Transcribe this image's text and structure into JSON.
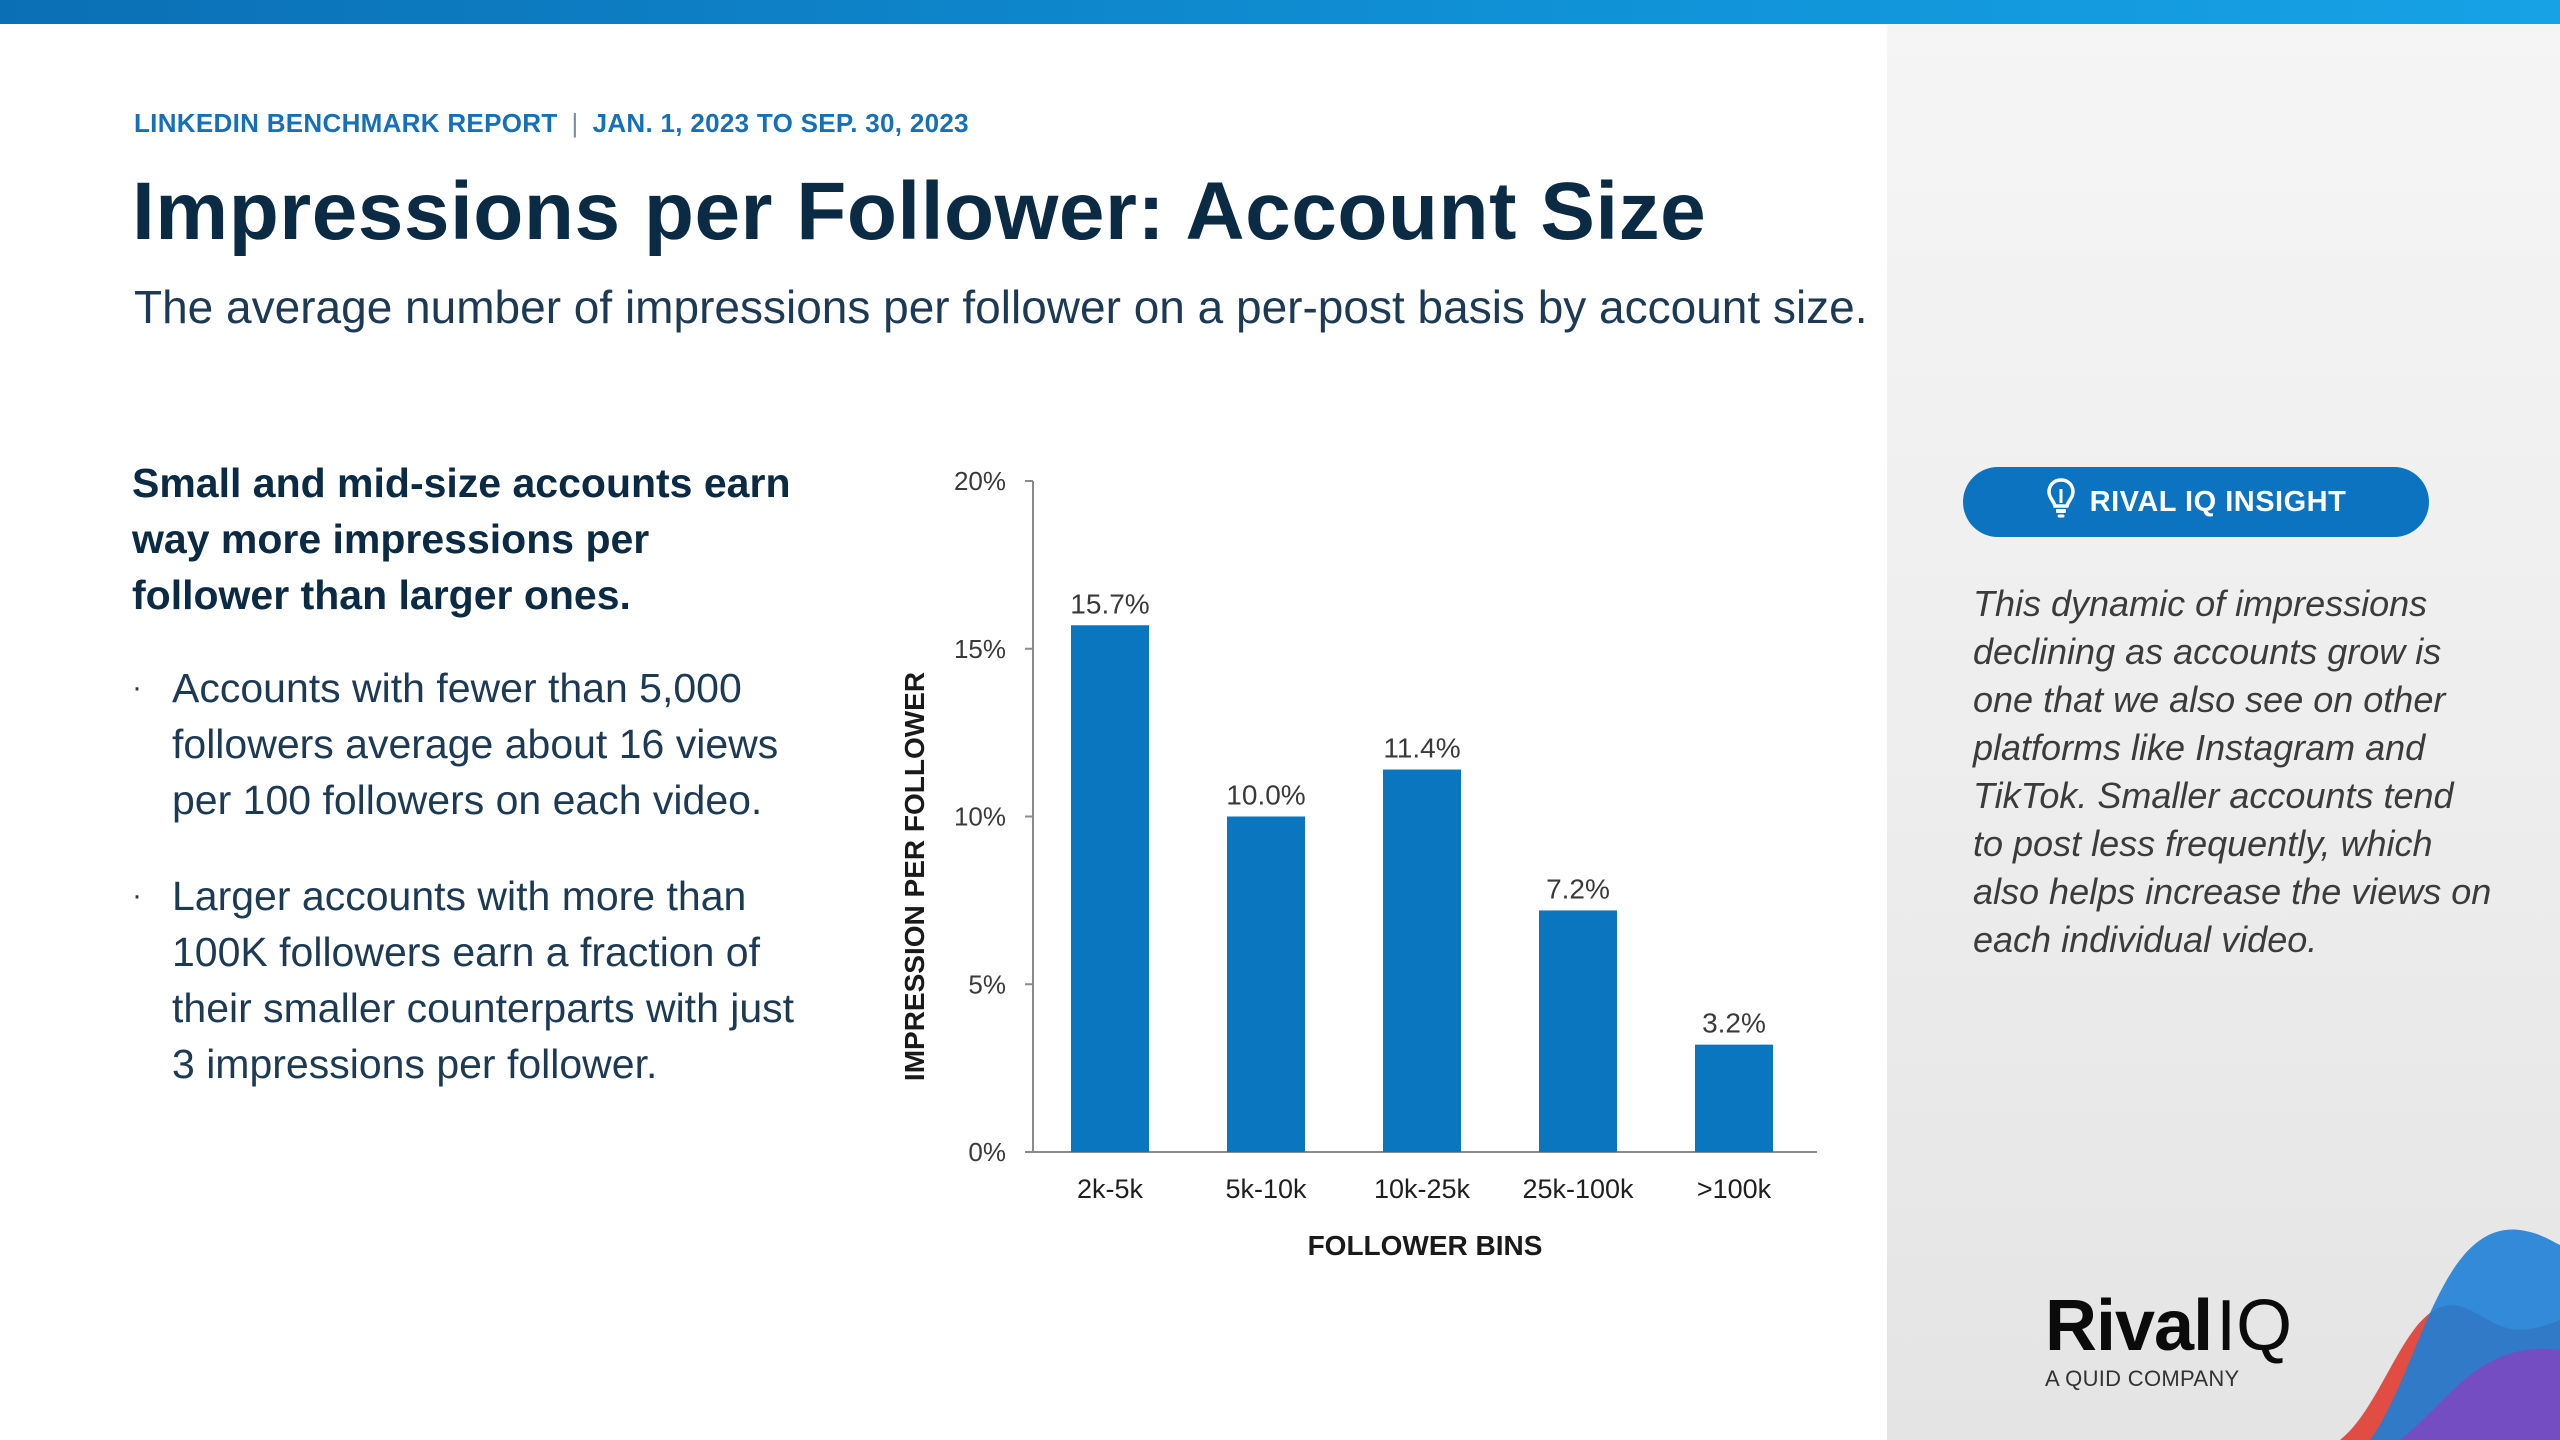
{
  "header": {
    "report_name": "LINKEDIN BENCHMARK REPORT",
    "separator": "|",
    "date_range": "JAN. 1, 2023 TO SEP. 30, 2023",
    "title": "Impressions per Follower: Account Size",
    "subtitle": "The average number of impressions per follower on a per-post basis by account size."
  },
  "left": {
    "lead": "Small and mid-size accounts earn way more impressions per follower than larger ones.",
    "bullets": [
      "Accounts with fewer than 5,000 followers average about 16 views per 100 followers on each video.",
      "Larger accounts with more than 100K followers earn a fraction of their smaller counterparts with just 3 impressions per follower."
    ],
    "bullet_glyph": "·"
  },
  "insight": {
    "badge_label": "RIVAL IQ INSIGHT",
    "badge_icon": "lightbulb-icon",
    "text": "This dynamic of impressions declining as accounts grow is one that we also see on other platforms like Instagram and TikTok. Smaller accounts tend to post less frequently, which also helps increase the views on each individual video."
  },
  "brand": {
    "name_bold": "Rival",
    "name_light": "IQ",
    "tagline": "A QUID COMPANY"
  },
  "colors": {
    "bar": "#0a76c0",
    "accent": "#1670b8",
    "title": "#0b2a44"
  },
  "chart_data": {
    "type": "bar",
    "categories": [
      "2k-5k",
      "5k-10k",
      "10k-25k",
      "25k-100k",
      ">100k"
    ],
    "values": [
      15.7,
      10.0,
      11.4,
      7.2,
      3.2
    ],
    "data_labels": [
      "15.7%",
      "10.0%",
      "11.4%",
      "7.2%",
      "3.2%"
    ],
    "xlabel": "FOLLOWER BINS",
    "ylabel": "IMPRESSION PER FOLLOWER",
    "ylim": [
      0,
      20
    ],
    "yticks": [
      0,
      5,
      10,
      15,
      20
    ],
    "ytick_labels": [
      "0%",
      "5%",
      "10%",
      "15%",
      "20%"
    ],
    "grid": false
  }
}
